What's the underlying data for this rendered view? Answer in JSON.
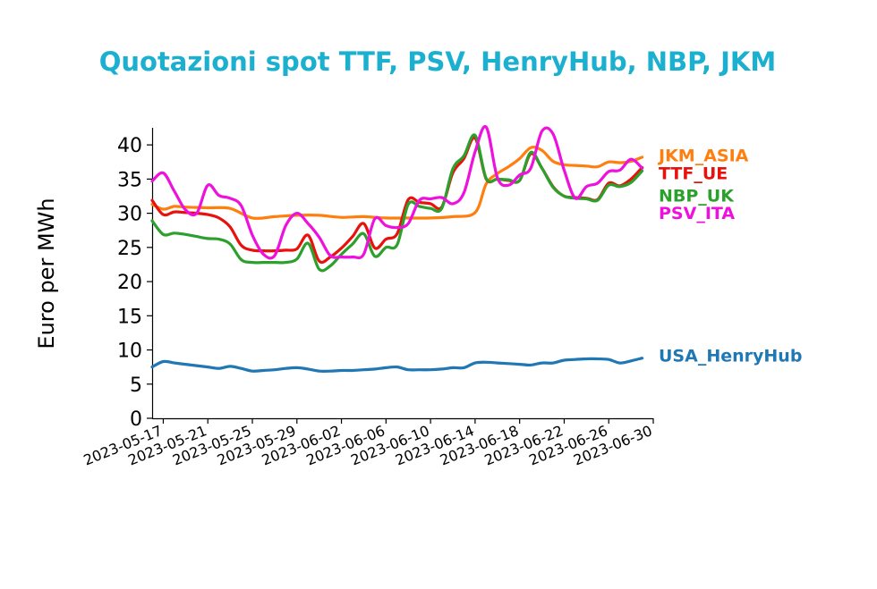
{
  "colors": {
    "title": "#1cb0d0",
    "USA_HenryHub": "#1f77b4",
    "JKM_ASIA": "#ff7f0e",
    "TTF_UE": "#e8120d",
    "NBP_UK": "#2ca02c",
    "PSV_ITA": "#ee11dd"
  },
  "chart_data": {
    "type": "line",
    "title": "Quotazioni spot TTF, PSV, HenryHub, NBP, JKM",
    "ylabel": "Euro per MWh",
    "xlabel": "",
    "ylim": [
      0,
      42.5
    ],
    "yticks": [
      0,
      5,
      10,
      15,
      20,
      25,
      30,
      35,
      40
    ],
    "ytick_labels": [
      "0",
      "5",
      "10",
      "15",
      "20",
      "25",
      "30",
      "35",
      "40"
    ],
    "xlim": [
      "2023-05-16",
      "2023-06-30"
    ],
    "xticks": [
      "2023-05-17",
      "2023-05-21",
      "2023-05-25",
      "2023-05-29",
      "2023-06-02",
      "2023-06-06",
      "2023-06-10",
      "2023-06-14",
      "2023-06-18",
      "2023-06-22",
      "2023-06-26",
      "2023-06-30"
    ],
    "grid": false,
    "legend": "labels at right end of each line",
    "series": [
      {
        "name": "USA_HenryHub",
        "x": [
          "2023-05-16",
          "2023-05-17",
          "2023-05-18",
          "2023-05-19",
          "2023-05-20",
          "2023-05-21",
          "2023-05-22",
          "2023-05-23",
          "2023-05-24",
          "2023-05-25",
          "2023-05-26",
          "2023-05-27",
          "2023-05-28",
          "2023-05-29",
          "2023-05-30",
          "2023-05-31",
          "2023-06-01",
          "2023-06-02",
          "2023-06-03",
          "2023-06-04",
          "2023-06-05",
          "2023-06-06",
          "2023-06-07",
          "2023-06-08",
          "2023-06-09",
          "2023-06-10",
          "2023-06-11",
          "2023-06-12",
          "2023-06-13",
          "2023-06-14",
          "2023-06-15",
          "2023-06-16",
          "2023-06-17",
          "2023-06-18",
          "2023-06-19",
          "2023-06-20",
          "2023-06-21",
          "2023-06-22",
          "2023-06-23",
          "2023-06-24",
          "2023-06-25",
          "2023-06-26",
          "2023-06-27",
          "2023-06-28",
          "2023-06-29"
        ],
        "values": [
          7.5,
          8.3,
          8.1,
          7.9,
          7.7,
          7.5,
          7.3,
          7.6,
          7.3,
          6.9,
          7.0,
          7.1,
          7.3,
          7.4,
          7.2,
          6.9,
          6.9,
          7.0,
          7.0,
          7.1,
          7.2,
          7.4,
          7.5,
          7.1,
          7.1,
          7.1,
          7.2,
          7.4,
          7.4,
          8.1,
          8.2,
          8.1,
          8.0,
          7.9,
          7.8,
          8.1,
          8.1,
          8.5,
          8.6,
          8.7,
          8.7,
          8.6,
          8.1,
          8.4,
          8.8
        ]
      },
      {
        "name": "JKM_ASIA",
        "x": [
          "2023-05-16",
          "2023-05-17",
          "2023-05-18",
          "2023-05-19",
          "2023-05-21",
          "2023-05-23",
          "2023-05-25",
          "2023-05-27",
          "2023-05-29",
          "2023-05-31",
          "2023-06-02",
          "2023-06-04",
          "2023-06-06",
          "2023-06-08",
          "2023-06-10",
          "2023-06-12",
          "2023-06-14",
          "2023-06-15",
          "2023-06-16",
          "2023-06-17",
          "2023-06-18",
          "2023-06-19",
          "2023-06-20",
          "2023-06-21",
          "2023-06-22",
          "2023-06-23",
          "2023-06-24",
          "2023-06-25",
          "2023-06-26",
          "2023-06-27",
          "2023-06-28",
          "2023-06-29"
        ],
        "values": [
          31.3,
          30.6,
          31.0,
          30.9,
          30.8,
          30.7,
          29.3,
          29.5,
          29.7,
          29.7,
          29.4,
          29.5,
          29.3,
          29.3,
          29.3,
          29.5,
          30.1,
          34.3,
          35.8,
          36.8,
          38.0,
          39.6,
          39.2,
          37.6,
          37.1,
          37.0,
          36.9,
          36.8,
          37.5,
          37.4,
          37.6,
          38.2
        ]
      },
      {
        "name": "TTF_UE",
        "x": [
          "2023-05-16",
          "2023-05-17",
          "2023-05-18",
          "2023-05-19",
          "2023-05-20",
          "2023-05-21",
          "2023-05-22",
          "2023-05-23",
          "2023-05-24",
          "2023-05-25",
          "2023-05-26",
          "2023-05-27",
          "2023-05-28",
          "2023-05-29",
          "2023-05-30",
          "2023-05-31",
          "2023-06-01",
          "2023-06-02",
          "2023-06-03",
          "2023-06-04",
          "2023-06-05",
          "2023-06-06",
          "2023-06-07",
          "2023-06-08",
          "2023-06-09",
          "2023-06-10",
          "2023-06-11",
          "2023-06-12",
          "2023-06-13",
          "2023-06-14",
          "2023-06-15",
          "2023-06-16",
          "2023-06-17",
          "2023-06-18",
          "2023-06-19",
          "2023-06-20",
          "2023-06-21",
          "2023-06-22",
          "2023-06-23",
          "2023-06-24",
          "2023-06-25",
          "2023-06-26",
          "2023-06-27",
          "2023-06-28",
          "2023-06-29"
        ],
        "values": [
          31.9,
          29.8,
          30.2,
          30.1,
          30.0,
          29.8,
          29.3,
          28.0,
          25.3,
          24.6,
          24.5,
          24.5,
          24.6,
          24.8,
          26.8,
          23.0,
          23.6,
          24.9,
          26.6,
          28.5,
          24.9,
          26.2,
          27.0,
          32.0,
          31.6,
          31.4,
          30.9,
          35.9,
          38.0,
          41.0,
          35.0,
          35.0,
          34.8,
          34.8,
          38.7,
          36.6,
          33.9,
          32.5,
          32.3,
          32.2,
          32.0,
          34.4,
          34.0,
          35.0,
          36.7
        ]
      },
      {
        "name": "NBP_UK",
        "x": [
          "2023-05-16",
          "2023-05-17",
          "2023-05-18",
          "2023-05-19",
          "2023-05-20",
          "2023-05-21",
          "2023-05-22",
          "2023-05-23",
          "2023-05-24",
          "2023-05-25",
          "2023-05-26",
          "2023-05-27",
          "2023-05-28",
          "2023-05-29",
          "2023-05-30",
          "2023-05-31",
          "2023-06-01",
          "2023-06-02",
          "2023-06-03",
          "2023-06-04",
          "2023-06-05",
          "2023-06-06",
          "2023-06-07",
          "2023-06-08",
          "2023-06-09",
          "2023-06-10",
          "2023-06-11",
          "2023-06-12",
          "2023-06-13",
          "2023-06-14",
          "2023-06-15",
          "2023-06-16",
          "2023-06-17",
          "2023-06-18",
          "2023-06-19",
          "2023-06-20",
          "2023-06-21",
          "2023-06-22",
          "2023-06-23",
          "2023-06-24",
          "2023-06-25",
          "2023-06-26",
          "2023-06-27",
          "2023-06-28",
          "2023-06-29"
        ],
        "values": [
          28.9,
          26.9,
          27.1,
          26.9,
          26.6,
          26.3,
          26.2,
          25.5,
          23.2,
          22.8,
          22.8,
          22.8,
          22.8,
          23.3,
          25.6,
          21.8,
          22.3,
          24.0,
          25.5,
          27.0,
          23.7,
          25.0,
          25.4,
          31.3,
          31.0,
          30.7,
          30.7,
          36.5,
          38.4,
          41.4,
          35.1,
          35.0,
          34.9,
          34.8,
          38.9,
          36.6,
          33.8,
          32.5,
          32.2,
          32.1,
          31.9,
          34.1,
          33.9,
          34.5,
          36.2
        ]
      },
      {
        "name": "PSV_ITA",
        "x": [
          "2023-05-16",
          "2023-05-17",
          "2023-05-18",
          "2023-05-19",
          "2023-05-20",
          "2023-05-21",
          "2023-05-22",
          "2023-05-23",
          "2023-05-24",
          "2023-05-25",
          "2023-05-26",
          "2023-05-27",
          "2023-05-28",
          "2023-05-29",
          "2023-05-30",
          "2023-05-31",
          "2023-06-01",
          "2023-06-02",
          "2023-06-03",
          "2023-06-04",
          "2023-06-05",
          "2023-06-06",
          "2023-06-07",
          "2023-06-08",
          "2023-06-09",
          "2023-06-10",
          "2023-06-11",
          "2023-06-12",
          "2023-06-13",
          "2023-06-14",
          "2023-06-15",
          "2023-06-16",
          "2023-06-17",
          "2023-06-18",
          "2023-06-19",
          "2023-06-20",
          "2023-06-21",
          "2023-06-22",
          "2023-06-23",
          "2023-06-24",
          "2023-06-25",
          "2023-06-26",
          "2023-06-27",
          "2023-06-28",
          "2023-06-29"
        ],
        "values": [
          34.7,
          35.9,
          33.2,
          30.5,
          30.0,
          34.1,
          32.6,
          32.2,
          31.1,
          26.8,
          24.0,
          23.8,
          28.2,
          30.0,
          28.5,
          26.5,
          23.8,
          23.6,
          23.6,
          24.0,
          29.2,
          28.2,
          27.9,
          28.5,
          31.9,
          32.1,
          32.3,
          31.4,
          33.0,
          39.0,
          42.6,
          35.2,
          34.1,
          35.6,
          36.6,
          42.0,
          41.6,
          36.3,
          32.2,
          33.9,
          34.4,
          36.1,
          36.3,
          37.9,
          36.6
        ]
      }
    ]
  }
}
